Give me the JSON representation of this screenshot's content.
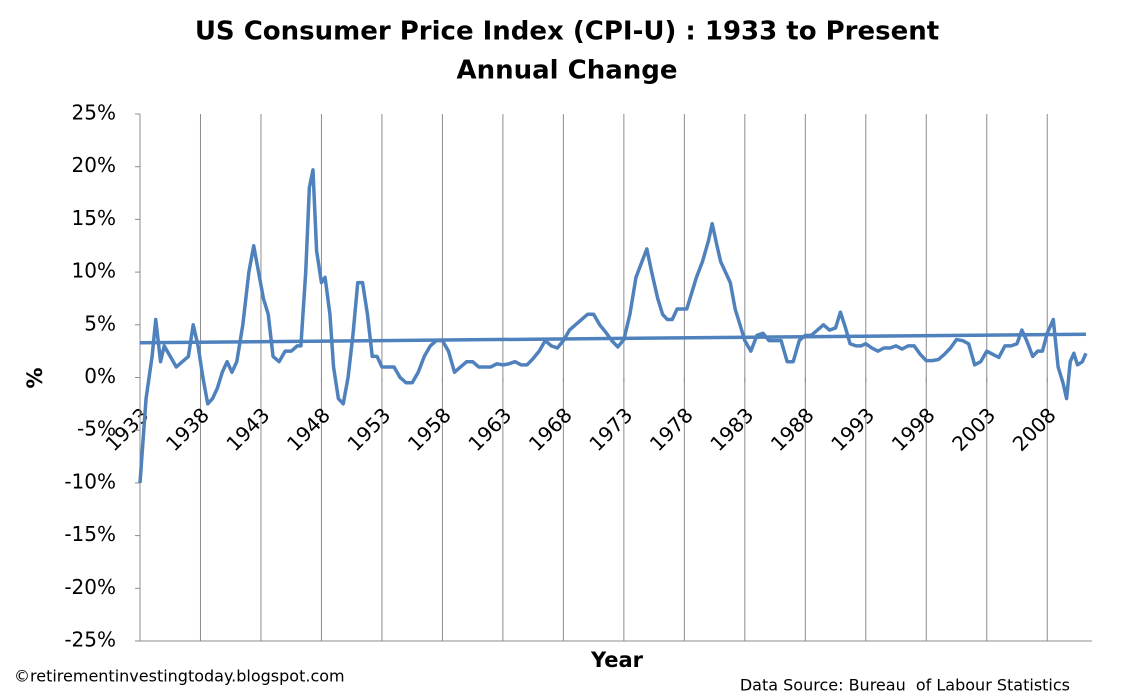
{
  "chart_data": {
    "type": "line",
    "title": "US Consumer Price Index (CPI-U) : 1933 to Present",
    "subtitle": "Annual Change",
    "y_label": "%",
    "x_label": "Year",
    "credit": "©retirementinvestingtoday.blogspot.com",
    "source": "Data Source: Bureau  of Labour Statistics",
    "xlim": [
      1933,
      2011.7
    ],
    "ylim": [
      -25,
      25
    ],
    "xticks": [
      1933,
      1938,
      1943,
      1948,
      1953,
      1958,
      1963,
      1968,
      1973,
      1978,
      1983,
      1988,
      1993,
      1998,
      2003,
      2008
    ],
    "yticks": [
      {
        "value": -25,
        "label": "-25%"
      },
      {
        "value": -20,
        "label": "-20%"
      },
      {
        "value": -15,
        "label": "-15%"
      },
      {
        "value": -10,
        "label": "-10%"
      },
      {
        "value": -5,
        "label": "-5%"
      },
      {
        "value": 0,
        "label": "0%"
      },
      {
        "value": 5,
        "label": "5%"
      },
      {
        "value": 10,
        "label": "10%"
      },
      {
        "value": 15,
        "label": "15%"
      },
      {
        "value": 20,
        "label": "20%"
      },
      {
        "value": 25,
        "label": "25%"
      }
    ],
    "grid": "x",
    "series": [
      {
        "color": "#4f81bd",
        "x": [
          1933.0,
          1933.5,
          1934.0,
          1934.3,
          1934.7,
          1935.0,
          1935.5,
          1936.0,
          1936.5,
          1937.0,
          1937.4,
          1937.8,
          1938.2,
          1938.6,
          1939.0,
          1939.4,
          1939.8,
          1940.2,
          1940.6,
          1941.0,
          1941.5,
          1942.0,
          1942.4,
          1942.8,
          1943.2,
          1943.6,
          1944.0,
          1944.5,
          1945.0,
          1945.5,
          1946.0,
          1946.3,
          1946.7,
          1947.0,
          1947.3,
          1947.6,
          1948.0,
          1948.3,
          1948.7,
          1949.0,
          1949.4,
          1949.8,
          1950.2,
          1950.6,
          1951.0,
          1951.4,
          1951.8,
          1952.2,
          1952.6,
          1953.0,
          1953.5,
          1954.0,
          1954.5,
          1955.0,
          1955.5,
          1956.0,
          1956.5,
          1957.0,
          1957.5,
          1958.0,
          1958.5,
          1959.0,
          1959.5,
          1960.0,
          1960.5,
          1961.0,
          1961.5,
          1962.0,
          1962.5,
          1963.0,
          1963.5,
          1964.0,
          1964.5,
          1965.0,
          1965.5,
          1966.0,
          1966.5,
          1967.0,
          1967.5,
          1968.0,
          1968.5,
          1969.0,
          1969.5,
          1970.0,
          1970.5,
          1971.0,
          1971.5,
          1972.0,
          1972.5,
          1973.0,
          1973.5,
          1974.0,
          1974.5,
          1974.9,
          1975.3,
          1975.8,
          1976.2,
          1976.6,
          1977.0,
          1977.4,
          1977.8,
          1978.2,
          1978.6,
          1979.0,
          1979.5,
          1980.0,
          1980.3,
          1980.7,
          1981.0,
          1981.4,
          1981.8,
          1982.2,
          1982.6,
          1983.0,
          1983.5,
          1984.0,
          1984.5,
          1985.0,
          1985.5,
          1986.0,
          1986.5,
          1987.0,
          1987.5,
          1988.0,
          1988.5,
          1989.0,
          1989.5,
          1990.0,
          1990.5,
          1990.9,
          1991.3,
          1991.7,
          1992.2,
          1992.6,
          1993.0,
          1993.5,
          1994.0,
          1994.5,
          1995.0,
          1995.5,
          1996.0,
          1996.5,
          1997.0,
          1997.5,
          1998.0,
          1998.5,
          1999.0,
          1999.5,
          2000.0,
          2000.5,
          2001.0,
          2001.5,
          2002.0,
          2002.5,
          2003.0,
          2003.5,
          2004.0,
          2004.5,
          2005.0,
          2005.5,
          2005.9,
          2006.3,
          2006.8,
          2007.2,
          2007.6,
          2008.0,
          2008.5,
          2008.9,
          2009.3,
          2009.6,
          2009.9,
          2010.2,
          2010.5,
          2010.9,
          2011.2
        ],
        "values": [
          -10,
          -2,
          2,
          5.5,
          1.5,
          3,
          2,
          1,
          1.5,
          2,
          5,
          3,
          0,
          -2.5,
          -2,
          -1,
          0.5,
          1.5,
          0.5,
          1.5,
          5,
          10,
          12.5,
          10,
          7.5,
          6,
          2,
          1.5,
          2.5,
          2.5,
          3,
          3,
          10,
          18,
          19.7,
          12,
          9,
          9.5,
          6,
          1,
          -2,
          -2.5,
          0,
          4,
          9,
          9,
          6,
          2,
          2,
          1,
          1,
          1,
          0,
          -0.5,
          -0.5,
          0.5,
          2,
          3,
          3.5,
          3.5,
          2.5,
          0.5,
          1,
          1.5,
          1.5,
          1,
          1,
          1,
          1.3,
          1.2,
          1.3,
          1.5,
          1.2,
          1.2,
          1.8,
          2.5,
          3.5,
          3,
          2.8,
          3.5,
          4.5,
          5,
          5.5,
          6,
          6,
          5,
          4.3,
          3.5,
          2.9,
          3.6,
          6,
          9.5,
          11,
          12.2,
          10,
          7.5,
          6,
          5.5,
          5.5,
          6.5,
          6.5,
          6.5,
          8,
          9.5,
          11,
          13,
          14.6,
          12.5,
          11,
          10,
          9,
          6.5,
          5,
          3.5,
          2.5,
          4,
          4.2,
          3.5,
          3.5,
          3.5,
          1.5,
          1.5,
          3.5,
          4,
          4,
          4.5,
          5,
          4.5,
          4.7,
          6.2,
          4.8,
          3.2,
          3,
          3,
          3.2,
          2.8,
          2.5,
          2.8,
          2.8,
          3,
          2.7,
          3,
          3,
          2.2,
          1.6,
          1.6,
          1.7,
          2.2,
          2.8,
          3.6,
          3.5,
          3.2,
          1.2,
          1.5,
          2.5,
          2.2,
          1.9,
          3,
          3,
          3.2,
          4.5,
          3.5,
          2,
          2.5,
          2.5,
          4.2,
          5.5,
          1,
          -0.5,
          -2,
          1.5,
          2.3,
          1.2,
          1.5,
          2.3
        ]
      },
      {
        "color": "#4f81bd",
        "x": [
          1933,
          2011.2
        ],
        "values": [
          3.3,
          4.1
        ]
      }
    ]
  }
}
